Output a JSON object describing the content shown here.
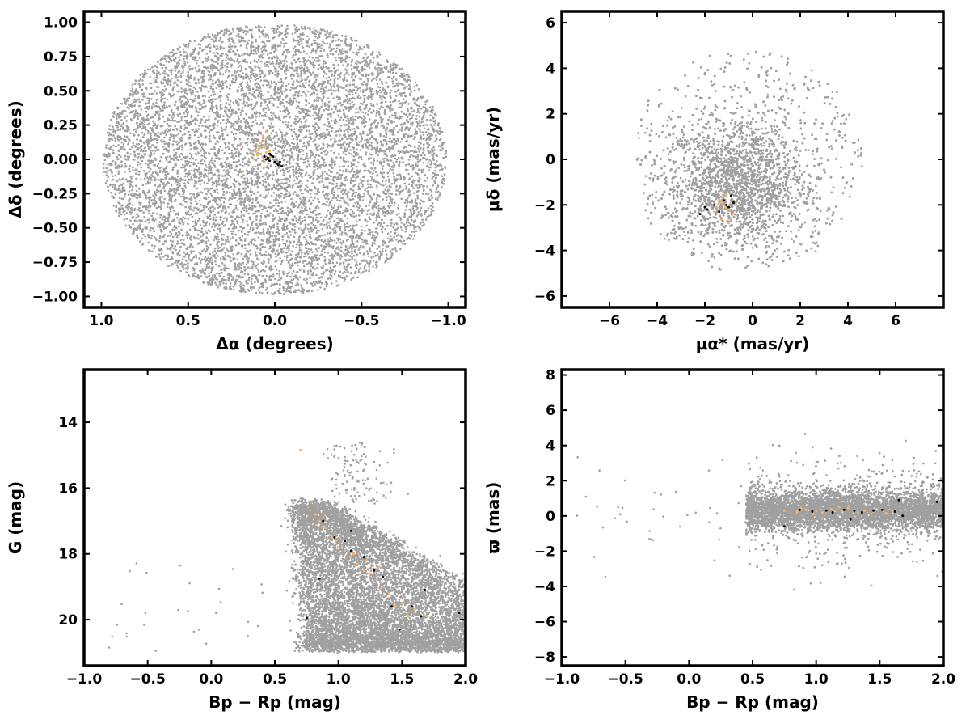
{
  "chart_data": [
    {
      "type": "scatter",
      "panel": "sky",
      "xlabel": "Δα (degrees)",
      "ylabel": "Δδ (degrees)",
      "xlim": [
        1.1,
        -1.1
      ],
      "ylim": [
        -1.08,
        1.08
      ],
      "x_reversed": true,
      "xticks": [
        1.0,
        0.5,
        0.0,
        -0.5,
        -1.0
      ],
      "xtick_labels": [
        "1.0",
        "0.5",
        "0.0",
        "−0.5",
        "−1.0"
      ],
      "yticks": [
        1.0,
        0.75,
        0.5,
        0.25,
        0.0,
        -0.25,
        -0.5,
        -0.75,
        -1.0
      ],
      "ytick_labels": [
        "1.00",
        "0.75",
        "0.50",
        "0.25",
        "0.00",
        "−0.25",
        "−0.50",
        "−0.75",
        "−1.00"
      ],
      "grid": false,
      "series": [
        {
          "role": "field",
          "color": "#a0a0a0",
          "count": 9000,
          "distribution": "uniform disk of radius 1.0 centred at (0, 0)"
        },
        {
          "role": "members",
          "color": "#f5b36b",
          "points": [
            [
              0.05,
              0.05
            ],
            [
              0.07,
              0.02
            ],
            [
              0.04,
              0.1
            ],
            [
              0.09,
              0.08
            ],
            [
              0.06,
              -0.02
            ],
            [
              0.1,
              0.03
            ],
            [
              0.03,
              0.06
            ],
            [
              0.08,
              0.12
            ],
            [
              0.05,
              0.15
            ],
            [
              0.11,
              0.06
            ],
            [
              0.07,
              0.17
            ],
            [
              0.02,
              0.02
            ],
            [
              0.12,
              0.0
            ],
            [
              0.06,
              0.09
            ],
            [
              0.09,
              -0.03
            ],
            [
              0.04,
              0.01
            ],
            [
              0.13,
              0.05
            ],
            [
              0.08,
              0.04
            ],
            [
              0.05,
              0.2
            ],
            [
              0.1,
              0.1
            ]
          ]
        },
        {
          "role": "selected",
          "color": "#000000",
          "points": [
            [
              0.02,
              0.03
            ],
            [
              0.03,
              -0.01
            ],
            [
              0.0,
              -0.02
            ],
            [
              -0.02,
              -0.04
            ],
            [
              0.04,
              0.01
            ],
            [
              -0.03,
              -0.02
            ],
            [
              0.05,
              0.0
            ],
            [
              0.01,
              0.02
            ],
            [
              -0.01,
              -0.03
            ],
            [
              0.06,
              0.02
            ],
            [
              0.03,
              0.04
            ],
            [
              -0.04,
              -0.05
            ]
          ]
        }
      ]
    },
    {
      "type": "scatter",
      "panel": "proper-motion",
      "xlabel": "μα* (mas/yr)",
      "ylabel": "μδ (mas/yr)",
      "xlim": [
        -8,
        8
      ],
      "ylim": [
        -6.5,
        6.5
      ],
      "xticks": [
        -6,
        -4,
        -2,
        0,
        2,
        4,
        6
      ],
      "xtick_labels": [
        "−6",
        "−4",
        "−2",
        "0",
        "2",
        "4",
        "6"
      ],
      "yticks": [
        6,
        4,
        2,
        0,
        -2,
        -4,
        -6
      ],
      "ytick_labels": [
        "6",
        "4",
        "2",
        "0",
        "−2",
        "−4",
        "−6"
      ],
      "grid": false,
      "series": [
        {
          "role": "field",
          "color": "#a0a0a0",
          "count": 9000,
          "distribution": "dense core near (-0.5, -1), disk radius about 5 in μα*, 5 in μδ, clipped below -5"
        },
        {
          "role": "members",
          "color": "#f5b36b",
          "points": [
            [
              -1.2,
              -2.0
            ],
            [
              -1.0,
              -2.2
            ],
            [
              -1.4,
              -1.8
            ],
            [
              -0.8,
              -2.4
            ],
            [
              -1.1,
              -1.6
            ],
            [
              -1.3,
              -2.6
            ],
            [
              -0.9,
              -1.9
            ],
            [
              -1.5,
              -2.1
            ],
            [
              -1.0,
              -2.8
            ],
            [
              -0.7,
              -2.0
            ],
            [
              -1.2,
              -1.5
            ],
            [
              -1.6,
              -2.3
            ],
            [
              -0.9,
              -2.6
            ],
            [
              -1.1,
              -2.1
            ],
            [
              -1.3,
              -1.9
            ]
          ]
        },
        {
          "role": "selected",
          "color": "#000000",
          "points": [
            [
              -2.2,
              -2.4
            ],
            [
              -1.9,
              -2.2
            ],
            [
              -1.6,
              -2.0
            ],
            [
              -1.2,
              -1.8
            ],
            [
              -1.0,
              -2.1
            ],
            [
              -0.9,
              -1.6
            ],
            [
              -1.4,
              -2.3
            ],
            [
              -2.0,
              -2.1
            ],
            [
              -1.1,
              -2.0
            ],
            [
              -0.8,
              -1.9
            ]
          ]
        }
      ]
    },
    {
      "type": "scatter",
      "panel": "cmd",
      "xlabel": "Bp − Rp (mag)",
      "ylabel": "G (mag)",
      "xlim": [
        -1.0,
        2.0
      ],
      "ylim": [
        21.4,
        12.4
      ],
      "y_reversed": true,
      "xticks": [
        -1.0,
        -0.5,
        0.0,
        0.5,
        1.0,
        1.5,
        2.0
      ],
      "xtick_labels": [
        "−1.0",
        "−0.5",
        "0.0",
        "0.5",
        "1.0",
        "1.5",
        "2.0"
      ],
      "yticks": [
        20,
        18,
        16,
        14
      ],
      "ytick_labels": [
        "20",
        "18",
        "16",
        "14"
      ],
      "grid": false,
      "series": [
        {
          "role": "field",
          "color": "#a0a0a0",
          "count": 9000,
          "distribution": "wedge-shaped colour-magnitude diagram: colour 0.6-2.0, G 16.5-21"
        },
        {
          "role": "members",
          "color": "#f5b36b",
          "points": [
            [
              0.78,
              16.4
            ],
            [
              0.82,
              16.8
            ],
            [
              0.9,
              17.2
            ],
            [
              0.95,
              17.5
            ],
            [
              1.0,
              17.8
            ],
            [
              1.05,
              17.9
            ],
            [
              1.1,
              18.1
            ],
            [
              1.15,
              18.3
            ],
            [
              1.2,
              18.5
            ],
            [
              1.25,
              18.6
            ],
            [
              1.3,
              18.8
            ],
            [
              1.35,
              19.0
            ],
            [
              1.4,
              19.2
            ],
            [
              1.5,
              19.5
            ],
            [
              1.6,
              19.7
            ],
            [
              1.7,
              19.9
            ],
            [
              0.85,
              17.0
            ],
            [
              1.22,
              18.2
            ],
            [
              1.32,
              18.4
            ],
            [
              1.45,
              19.6
            ],
            [
              0.98,
              17.6
            ],
            [
              1.12,
              18.0
            ],
            [
              0.7,
              14.85
            ],
            [
              1.55,
              19.9
            ]
          ]
        },
        {
          "role": "selected",
          "color": "#000000",
          "points": [
            [
              0.75,
              19.95
            ],
            [
              0.85,
              18.75
            ],
            [
              0.88,
              17.0
            ],
            [
              0.97,
              17.5
            ],
            [
              1.05,
              17.6
            ],
            [
              1.1,
              17.3
            ],
            [
              1.2,
              18.1
            ],
            [
              1.28,
              18.5
            ],
            [
              1.35,
              18.7
            ],
            [
              1.42,
              19.6
            ],
            [
              1.48,
              20.3
            ],
            [
              1.58,
              19.6
            ],
            [
              1.65,
              19.9
            ],
            [
              1.68,
              19.1
            ],
            [
              1.95,
              19.8
            ],
            [
              1.1,
              17.9
            ]
          ]
        }
      ]
    },
    {
      "type": "scatter",
      "panel": "parallax",
      "xlabel": "Bp − Rp (mag)",
      "ylabel": "ϖ (mas)",
      "xlim": [
        -1.0,
        2.0
      ],
      "ylim": [
        -8.5,
        8.3
      ],
      "xticks": [
        -1.0,
        -0.5,
        0.0,
        0.5,
        1.0,
        1.5,
        2.0
      ],
      "xtick_labels": [
        "−1.0",
        "−0.5",
        "0.0",
        "0.5",
        "1.0",
        "1.5",
        "2.0"
      ],
      "yticks": [
        8,
        6,
        4,
        2,
        0,
        -2,
        -4,
        -6,
        -8
      ],
      "ytick_labels": [
        "8",
        "6",
        "4",
        "2",
        "0",
        "−2",
        "−4",
        "−6",
        "−8"
      ],
      "grid": false,
      "series": [
        {
          "role": "field",
          "color": "#a0a0a0",
          "count": 9000,
          "distribution": "horizontal band at ϖ≈0.3 spanning colour 0.5-2.0, scatter ±1.5"
        },
        {
          "role": "members",
          "color": "#f5b36b",
          "points": [
            [
              0.75,
              0.3
            ],
            [
              0.85,
              0.25
            ],
            [
              0.92,
              0.35
            ],
            [
              1.0,
              0.3
            ],
            [
              1.05,
              0.2
            ],
            [
              1.12,
              0.4
            ],
            [
              1.2,
              0.3
            ],
            [
              1.25,
              0.45
            ],
            [
              1.3,
              0.35
            ],
            [
              1.38,
              0.3
            ],
            [
              1.45,
              0.25
            ],
            [
              1.52,
              0.4
            ],
            [
              1.6,
              0.3
            ],
            [
              1.7,
              0.35
            ],
            [
              0.98,
              0.1
            ],
            [
              1.18,
              0.5
            ],
            [
              1.33,
              0.2
            ],
            [
              1.55,
              0.15
            ],
            [
              0.88,
              0.45
            ],
            [
              1.08,
              0.28
            ]
          ]
        },
        {
          "role": "selected",
          "color": "#000000",
          "points": [
            [
              0.75,
              -0.6
            ],
            [
              0.87,
              0.35
            ],
            [
              0.97,
              0.25
            ],
            [
              1.08,
              0.3
            ],
            [
              1.13,
              0.2
            ],
            [
              1.22,
              0.35
            ],
            [
              1.3,
              0.3
            ],
            [
              1.36,
              0.2
            ],
            [
              1.45,
              0.3
            ],
            [
              1.52,
              0.35
            ],
            [
              1.62,
              0.25
            ],
            [
              1.65,
              0.9
            ],
            [
              1.68,
              0.0
            ],
            [
              1.95,
              0.8
            ],
            [
              1.27,
              -0.2
            ]
          ]
        }
      ]
    }
  ]
}
